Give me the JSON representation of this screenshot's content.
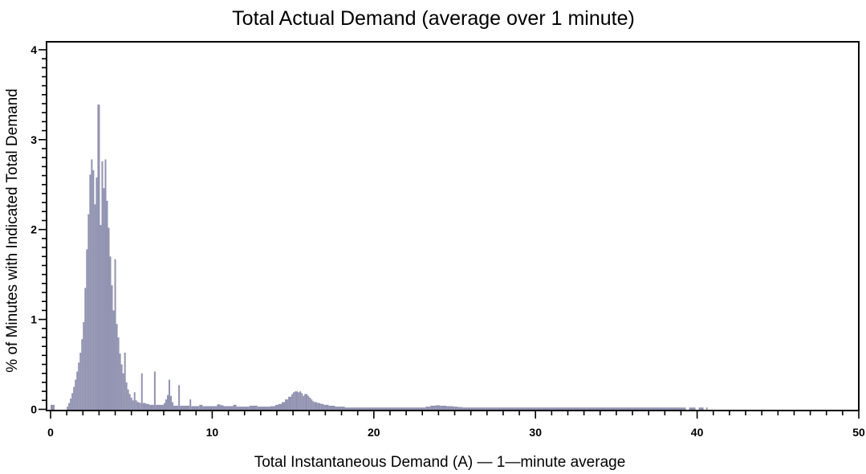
{
  "chart_data": {
    "type": "bar",
    "title": "Total Actual Demand (average over 1 minute)",
    "xlabel": "Total Instantaneous Demand (A) — 1—minute average",
    "ylabel": "% of Minutes with Indicated Total Demand",
    "xlim": [
      -0.25,
      50
    ],
    "ylim": [
      0,
      4.1
    ],
    "x_major_ticks": [
      0,
      10,
      20,
      30,
      40,
      50
    ],
    "x_minor_step": 1,
    "y_major_ticks": [
      0,
      1,
      2,
      3,
      4
    ],
    "y_minor_step": 0.1,
    "grid": false,
    "legend": false,
    "bar_color": "#9193b1",
    "axis_color": "#000000",
    "segments_format": "[x_start, x_end, percent_of_minutes]",
    "segments": [
      [
        0.0,
        0.25,
        0.05
      ],
      [
        1.0,
        1.1,
        0.03
      ],
      [
        1.1,
        1.2,
        0.07
      ],
      [
        1.2,
        1.3,
        0.12
      ],
      [
        1.3,
        1.4,
        0.18
      ],
      [
        1.4,
        1.5,
        0.25
      ],
      [
        1.5,
        1.6,
        0.33
      ],
      [
        1.6,
        1.7,
        0.42
      ],
      [
        1.7,
        1.8,
        0.52
      ],
      [
        1.8,
        1.9,
        0.63
      ],
      [
        1.9,
        2.0,
        0.78
      ],
      [
        2.0,
        2.1,
        0.97
      ],
      [
        2.1,
        2.2,
        1.35
      ],
      [
        2.2,
        2.3,
        1.78
      ],
      [
        2.3,
        2.4,
        2.17
      ],
      [
        2.4,
        2.5,
        2.61
      ],
      [
        2.5,
        2.6,
        2.78
      ],
      [
        2.6,
        2.7,
        2.66
      ],
      [
        2.7,
        2.8,
        2.28
      ],
      [
        2.8,
        2.9,
        2.58
      ],
      [
        2.9,
        3.05,
        3.39
      ],
      [
        3.05,
        3.15,
        2.05
      ],
      [
        3.15,
        3.25,
        2.76
      ],
      [
        3.25,
        3.35,
        2.46
      ],
      [
        3.35,
        3.45,
        2.78
      ],
      [
        3.45,
        3.55,
        2.32
      ],
      [
        3.55,
        3.65,
        2.02
      ],
      [
        3.65,
        3.75,
        1.7
      ],
      [
        3.75,
        3.85,
        1.38
      ],
      [
        3.85,
        3.95,
        1.1
      ],
      [
        3.95,
        4.05,
        1.67
      ],
      [
        4.05,
        4.15,
        0.95
      ],
      [
        4.15,
        4.25,
        0.8
      ],
      [
        4.25,
        4.35,
        0.62
      ],
      [
        4.35,
        4.45,
        0.5
      ],
      [
        4.45,
        4.55,
        0.4
      ],
      [
        4.55,
        4.65,
        0.63
      ],
      [
        4.65,
        4.75,
        0.3
      ],
      [
        4.75,
        4.85,
        0.22
      ],
      [
        4.85,
        4.95,
        0.17
      ],
      [
        4.95,
        5.05,
        0.13
      ],
      [
        5.05,
        5.15,
        0.1
      ],
      [
        5.15,
        5.25,
        0.19
      ],
      [
        5.25,
        5.35,
        0.1
      ],
      [
        5.35,
        5.5,
        0.08
      ],
      [
        5.5,
        5.6,
        0.07
      ],
      [
        5.6,
        5.7,
        0.4
      ],
      [
        5.7,
        5.9,
        0.07
      ],
      [
        5.9,
        6.1,
        0.06
      ],
      [
        6.1,
        6.4,
        0.05
      ],
      [
        6.4,
        6.5,
        0.42
      ],
      [
        6.5,
        7.0,
        0.05
      ],
      [
        7.0,
        7.1,
        0.07
      ],
      [
        7.1,
        7.2,
        0.11
      ],
      [
        7.2,
        7.3,
        0.16
      ],
      [
        7.3,
        7.4,
        0.33
      ],
      [
        7.4,
        7.5,
        0.15
      ],
      [
        7.5,
        7.6,
        0.08
      ],
      [
        7.6,
        7.9,
        0.04
      ],
      [
        7.9,
        8.0,
        0.27
      ],
      [
        8.0,
        8.6,
        0.04
      ],
      [
        8.6,
        8.7,
        0.11
      ],
      [
        8.7,
        9.2,
        0.035
      ],
      [
        9.2,
        9.4,
        0.05
      ],
      [
        9.4,
        10.3,
        0.035
      ],
      [
        10.3,
        10.5,
        0.055
      ],
      [
        10.5,
        10.7,
        0.045
      ],
      [
        10.7,
        11.3,
        0.035
      ],
      [
        11.3,
        11.5,
        0.05
      ],
      [
        11.5,
        12.3,
        0.03
      ],
      [
        12.3,
        12.8,
        0.04
      ],
      [
        12.8,
        13.6,
        0.03
      ],
      [
        13.6,
        13.9,
        0.035
      ],
      [
        13.9,
        14.1,
        0.05
      ],
      [
        14.1,
        14.3,
        0.06
      ],
      [
        14.3,
        14.5,
        0.08
      ],
      [
        14.5,
        14.7,
        0.11
      ],
      [
        14.7,
        14.9,
        0.14
      ],
      [
        14.9,
        15.0,
        0.17
      ],
      [
        15.0,
        15.1,
        0.19
      ],
      [
        15.1,
        15.3,
        0.2
      ],
      [
        15.3,
        15.4,
        0.19
      ],
      [
        15.4,
        15.5,
        0.2
      ],
      [
        15.5,
        15.6,
        0.18
      ],
      [
        15.6,
        15.7,
        0.15
      ],
      [
        15.7,
        15.9,
        0.17
      ],
      [
        15.9,
        16.0,
        0.15
      ],
      [
        16.0,
        16.1,
        0.13
      ],
      [
        16.1,
        16.2,
        0.11
      ],
      [
        16.2,
        16.3,
        0.09
      ],
      [
        16.3,
        16.5,
        0.08
      ],
      [
        16.5,
        16.7,
        0.07
      ],
      [
        16.7,
        16.9,
        0.06
      ],
      [
        16.9,
        17.2,
        0.05
      ],
      [
        17.2,
        17.6,
        0.04
      ],
      [
        17.6,
        18.2,
        0.03
      ],
      [
        18.2,
        23.2,
        0.02
      ],
      [
        23.2,
        23.5,
        0.03
      ],
      [
        23.5,
        23.8,
        0.04
      ],
      [
        23.8,
        24.1,
        0.045
      ],
      [
        24.1,
        24.5,
        0.04
      ],
      [
        24.5,
        24.9,
        0.035
      ],
      [
        24.9,
        25.2,
        0.03
      ],
      [
        25.2,
        25.5,
        0.025
      ],
      [
        25.5,
        39.3,
        0.02
      ],
      [
        39.5,
        39.9,
        0.02
      ],
      [
        40.1,
        40.4,
        0.02
      ],
      [
        40.55,
        40.65,
        0.02
      ]
    ]
  }
}
